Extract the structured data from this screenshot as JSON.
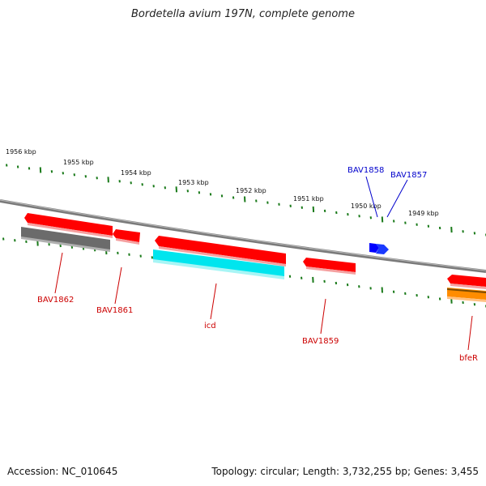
{
  "title": "Bordetella avium 197N, complete genome",
  "footer": {
    "accession": "Accession: NC_010645",
    "summary": "Topology: circular; Length: 3,732,255 bp; Genes: 3,455"
  },
  "colors": {
    "gene_red": "#ff0000",
    "gene_gray": "#6b6b6b",
    "gene_cyan": "#00ffff",
    "gene_blue": "#0000ff",
    "gene_orange": "#ff8c00",
    "tick_green": "#1a7a1a",
    "label_red": "#cc0000",
    "label_blue": "#0000cc"
  },
  "scale_labels": [
    "1956 kbp",
    "1955 kbp",
    "1954 kbp",
    "1953 kbp",
    "1952 kbp",
    "1951 kbp",
    "1950 kbp",
    "1949 kbp"
  ],
  "genes": [
    {
      "label": "BAV1862",
      "strand": "plus",
      "color": "#ff0000"
    },
    {
      "label": "",
      "strand": "minus",
      "color": "#6b6b6b"
    },
    {
      "label": "BAV1861",
      "strand": "plus",
      "color": "#ff0000"
    },
    {
      "label": "",
      "strand": "plus",
      "color": "#ff0000"
    },
    {
      "label": "icd",
      "strand": "minus",
      "color": "#00ffff"
    },
    {
      "label": "BAV1859",
      "strand": "plus",
      "color": "#ff0000"
    },
    {
      "label": "BAV1858",
      "strand": "plus",
      "color": "#0000ff"
    },
    {
      "label": "BAV1857",
      "strand": "plus",
      "color": "#0000ff"
    },
    {
      "label": "bfeR",
      "strand": "plus",
      "color": "#ff0000"
    },
    {
      "label": "",
      "strand": "minus",
      "color": "#ff8c00"
    }
  ]
}
